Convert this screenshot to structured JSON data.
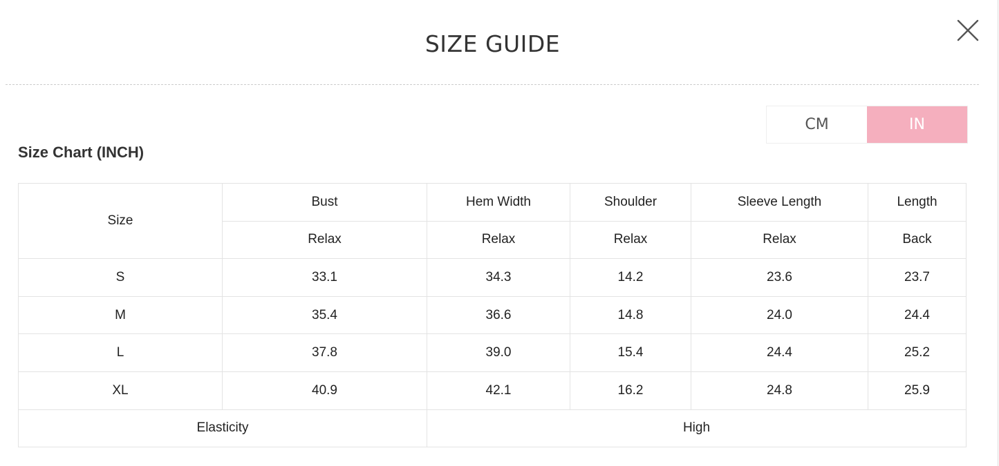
{
  "header": {
    "title": "SIZE GUIDE",
    "close_icon": "close-icon"
  },
  "unit_toggle": {
    "options": [
      "CM",
      "IN"
    ],
    "selected": "IN",
    "accent": "#f5afbe"
  },
  "chart": {
    "subtitle": "Size Chart (INCH)",
    "size_header": "Size",
    "columns": [
      {
        "name": "Bust",
        "sub": "Relax"
      },
      {
        "name": "Hem Width",
        "sub": "Relax"
      },
      {
        "name": "Shoulder",
        "sub": "Relax"
      },
      {
        "name": "Sleeve Length",
        "sub": "Relax"
      },
      {
        "name": "Length",
        "sub": "Back"
      }
    ],
    "rows": [
      {
        "size": "S",
        "values": [
          "33.1",
          "34.3",
          "14.2",
          "23.6",
          "23.7"
        ]
      },
      {
        "size": "M",
        "values": [
          "35.4",
          "36.6",
          "14.8",
          "24.0",
          "24.4"
        ]
      },
      {
        "size": "L",
        "values": [
          "37.8",
          "39.0",
          "15.4",
          "24.4",
          "25.2"
        ]
      },
      {
        "size": "XL",
        "values": [
          "40.9",
          "42.1",
          "16.2",
          "24.8",
          "25.9"
        ]
      }
    ],
    "elasticity_label": "Elasticity",
    "elasticity_value": "High"
  }
}
